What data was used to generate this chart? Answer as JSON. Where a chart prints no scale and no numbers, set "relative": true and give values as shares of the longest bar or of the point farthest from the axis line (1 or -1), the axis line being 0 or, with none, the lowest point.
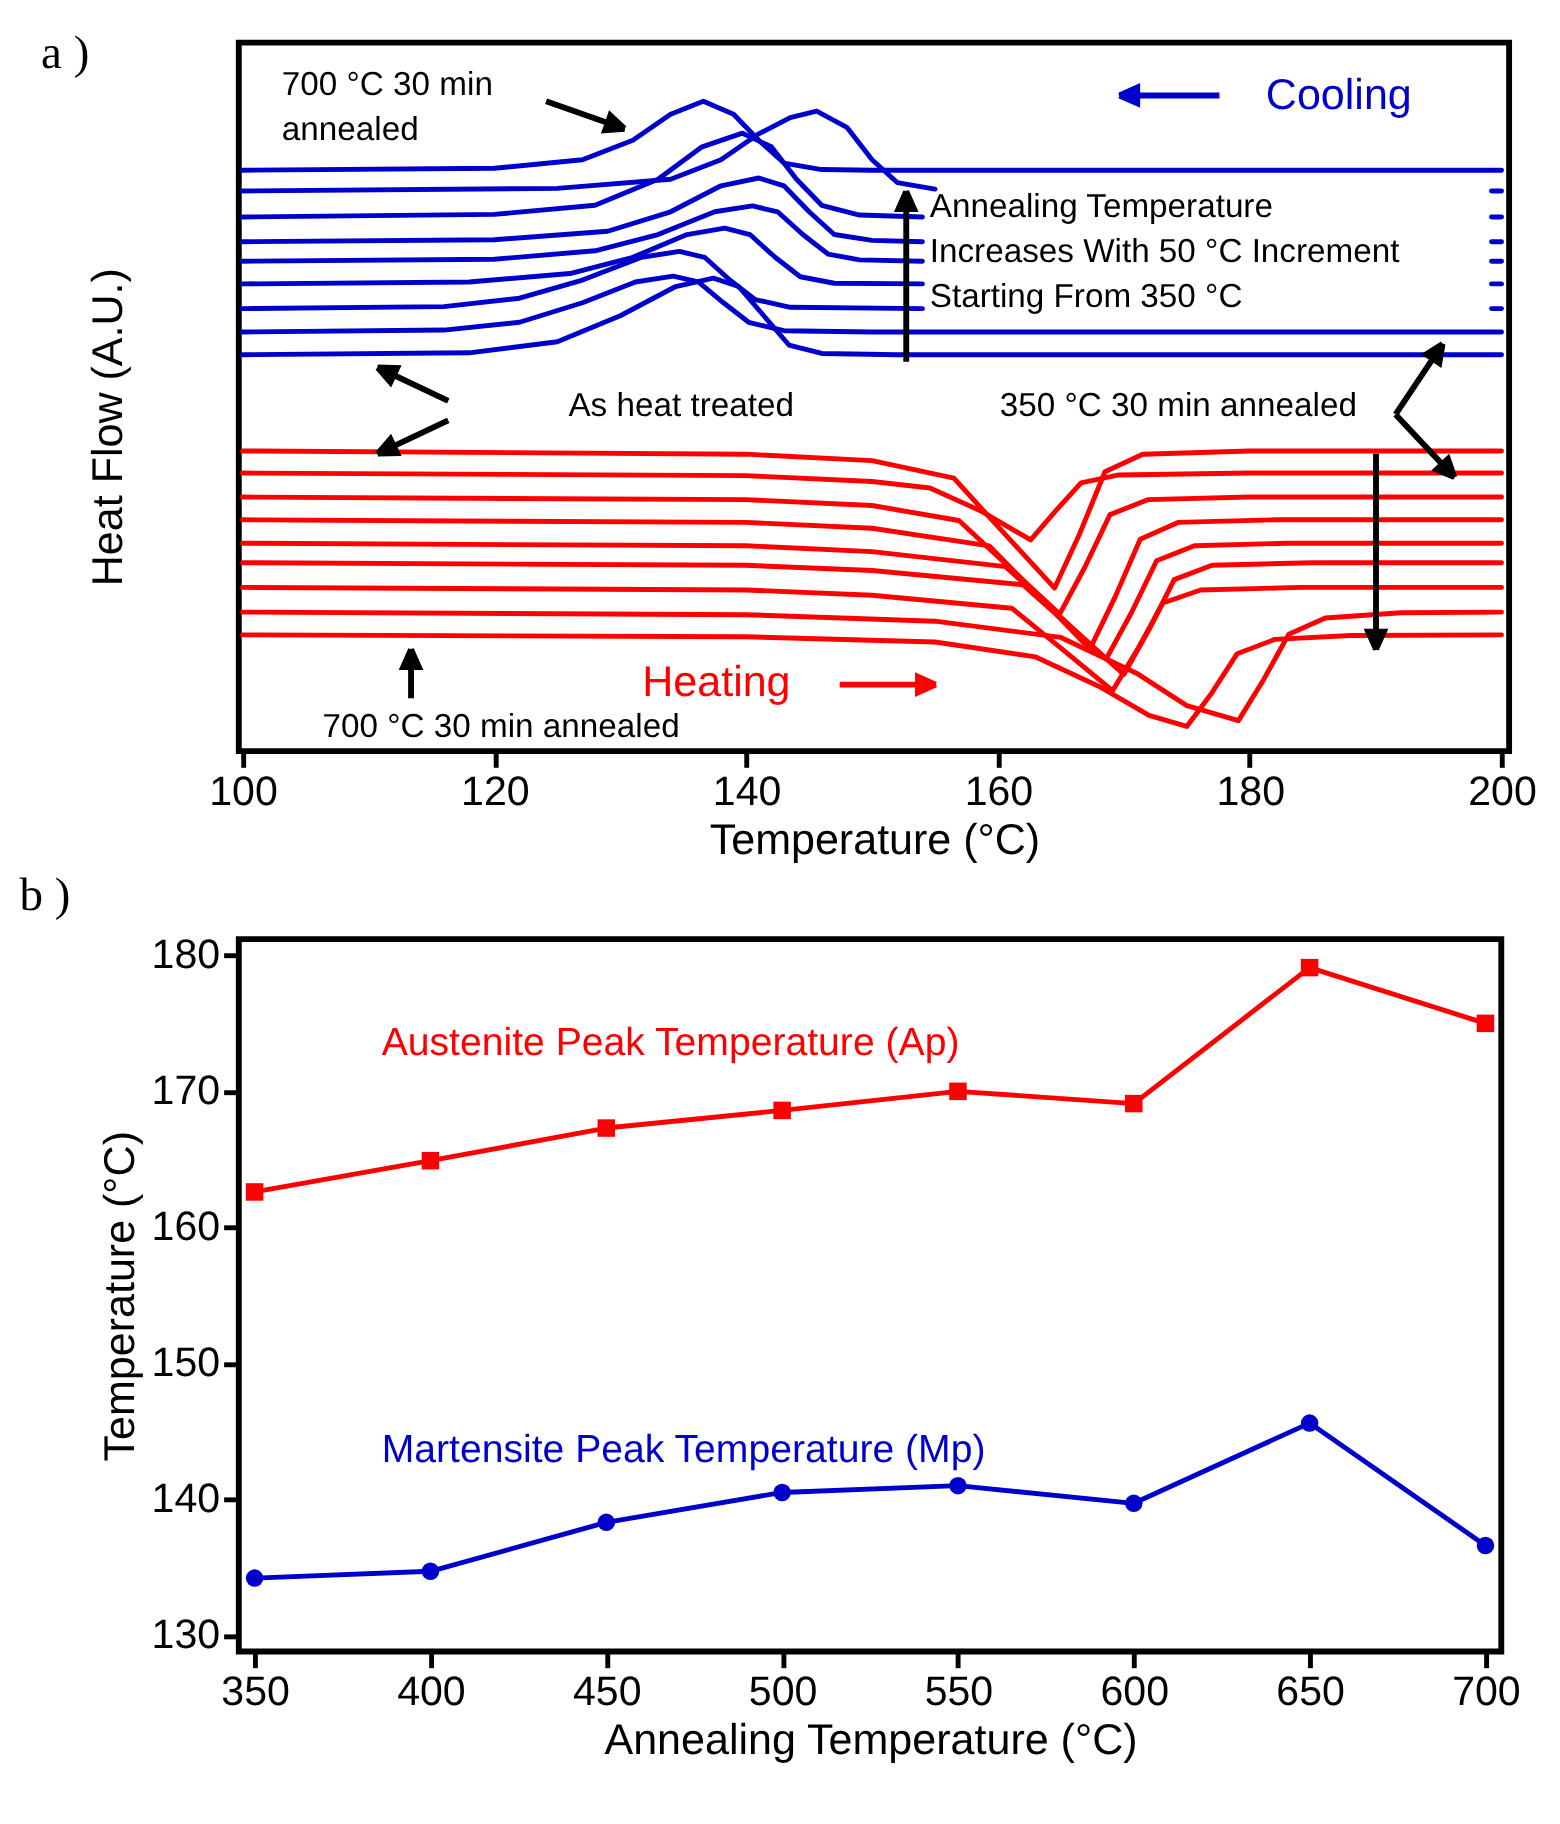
{
  "chart_data": [
    {
      "type": "line",
      "title": "a )",
      "xlabel": "Temperature (°C)",
      "ylabel": "Heat Flow (A.U.)",
      "relative": true,
      "xlim": [
        99.7,
        200.6
      ],
      "xticks": [
        100,
        120,
        140,
        160,
        180,
        200
      ],
      "annotations": [
        "700 °C 30 min\nannealed",
        "As heat treated",
        "350 °C 30 min annealed",
        "Annealing Temperature\nIncreases With 50 °C Increment\nStarting From 350 °C",
        "Cooling",
        "Heating",
        "700 °C 30 min annealed"
      ],
      "series": [
        {
          "color": "#0000cc",
          "x": [
            100,
            120,
            127,
            131,
            134,
            136.6,
            139,
            141,
            143,
            146,
            150,
            200
          ],
          "values": [
            0.894,
            0.897,
            0.91,
            0.94,
            0.98,
            1.0,
            0.98,
            0.94,
            0.905,
            0.895,
            0.894,
            0.894
          ]
        },
        {
          "color": "#0000cc",
          "x": [
            100,
            125,
            134,
            138,
            141,
            143.5,
            145.6,
            148,
            150,
            152,
            155,
            170,
            199.2,
            200
          ],
          "values": [
            0.862,
            0.866,
            0.88,
            0.91,
            0.95,
            0.975,
            0.985,
            0.96,
            0.91,
            0.875,
            0.865,
            null,
            0.862,
            0.862
          ]
        },
        {
          "color": "#0000cc",
          "x": [
            100,
            120,
            128,
            133,
            136.5,
            139.7,
            142,
            144,
            146,
            149,
            154,
            170,
            199.2,
            200
          ],
          "values": [
            0.822,
            0.826,
            0.84,
            0.88,
            0.93,
            0.951,
            0.93,
            0.88,
            0.84,
            0.825,
            0.822,
            null,
            0.822,
            0.822
          ]
        },
        {
          "color": "#0000cc",
          "x": [
            100,
            120,
            129,
            134,
            138,
            141,
            143,
            145,
            147,
            150,
            154,
            170,
            199.2,
            200
          ],
          "values": [
            0.784,
            0.787,
            0.8,
            0.83,
            0.87,
            0.882,
            0.87,
            0.83,
            0.795,
            0.786,
            0.784,
            null,
            0.784,
            0.784
          ]
        },
        {
          "color": "#0000cc",
          "x": [
            100,
            120,
            128,
            133,
            137.5,
            140.5,
            142.5,
            144.5,
            146.5,
            149,
            154,
            170,
            199.2,
            200
          ],
          "values": [
            0.754,
            0.757,
            0.77,
            0.795,
            0.83,
            0.839,
            0.83,
            0.795,
            0.765,
            0.756,
            0.754,
            null,
            0.754,
            0.754
          ]
        },
        {
          "color": "#0000cc",
          "x": [
            100,
            118,
            126,
            131,
            135.3,
            138.3,
            140.3,
            142.3,
            144.3,
            147,
            154,
            170,
            199.2,
            200
          ],
          "values": [
            0.719,
            0.722,
            0.735,
            0.76,
            0.795,
            0.805,
            0.795,
            0.76,
            0.73,
            0.72,
            0.719,
            null,
            0.719,
            0.719
          ]
        },
        {
          "color": "#0000cc",
          "x": [
            100,
            116,
            122,
            127,
            131.7,
            134.7,
            136.7,
            138.7,
            140.7,
            143.5,
            154,
            170,
            199.2,
            200
          ],
          "values": [
            0.681,
            0.684,
            0.697,
            0.725,
            0.76,
            0.769,
            0.76,
            0.725,
            0.695,
            0.683,
            0.681,
            null,
            0.681,
            0.681
          ]
        },
        {
          "color": "#0000cc",
          "x": [
            100,
            116,
            122,
            127,
            131.2,
            134.2,
            136.2,
            138.2,
            140.2,
            143,
            150,
            200
          ],
          "values": [
            0.645,
            0.648,
            0.66,
            0.69,
            0.722,
            0.731,
            0.722,
            0.69,
            0.66,
            0.647,
            0.645,
            0.645
          ]
        },
        {
          "color": "#0000cc",
          "x": [
            100,
            118,
            125,
            130,
            134.4,
            137.4,
            139.4,
            141.4,
            143.4,
            146,
            152,
            200
          ],
          "values": [
            0.61,
            0.613,
            0.63,
            0.67,
            0.715,
            0.728,
            0.715,
            0.67,
            0.625,
            0.612,
            0.61,
            0.61
          ]
        },
        {
          "color": "#ff0000",
          "x": [
            100,
            140,
            150,
            156.5,
            160.5,
            164.5,
            166.5,
            168.5,
            171.5,
            180,
            200
          ],
          "values": [
            0.462,
            0.457,
            0.447,
            0.42,
            0.335,
            0.251,
            0.335,
            0.43,
            0.457,
            0.462,
            0.462
          ]
        },
        {
          "color": "#ff0000",
          "x": [
            100,
            140,
            150,
            154.6,
            158.6,
            162.6,
            164.6,
            166.6,
            169.6,
            180,
            200
          ],
          "values": [
            0.428,
            0.424,
            0.415,
            0.405,
            0.37,
            0.325,
            0.37,
            0.413,
            0.425,
            0.428,
            0.428
          ]
        },
        {
          "color": "#ff0000",
          "x": [
            100,
            140,
            150,
            156.9,
            160.9,
            164.9,
            166.9,
            168.9,
            171.9,
            180,
            200
          ],
          "values": [
            0.391,
            0.387,
            0.378,
            0.355,
            0.283,
            0.211,
            0.283,
            0.364,
            0.387,
            0.391,
            0.391
          ]
        },
        {
          "color": "#ff0000",
          "x": [
            100,
            140,
            150,
            159.3,
            163.3,
            167.3,
            169.3,
            171.3,
            174.3,
            182,
            200
          ],
          "values": [
            0.356,
            0.352,
            0.343,
            0.316,
            0.237,
            0.157,
            0.237,
            0.326,
            0.352,
            0.356,
            0.356
          ]
        },
        {
          "color": "#ff0000",
          "x": [
            100,
            140,
            150,
            160.6,
            164.6,
            168.6,
            170.6,
            172.6,
            175.6,
            183,
            200
          ],
          "values": [
            0.32,
            0.316,
            0.307,
            0.284,
            0.213,
            0.142,
            0.213,
            0.293,
            0.316,
            0.32,
            0.32
          ]
        },
        {
          "color": "#ff0000",
          "x": [
            100,
            140,
            150,
            162,
            166,
            170,
            172,
            174,
            177,
            185,
            200
          ],
          "values": [
            0.29,
            0.286,
            0.278,
            0.256,
            0.187,
            0.118,
            0.187,
            0.264,
            0.286,
            0.29,
            0.29
          ]
        },
        {
          "color": "#ff0000",
          "x": [
            100,
            140,
            150,
            161.1,
            165.1,
            169.1,
            171.1,
            173.1,
            176.1,
            184,
            200
          ],
          "values": [
            0.252,
            0.248,
            0.24,
            0.22,
            0.157,
            0.093,
            0.157,
            0.228,
            0.248,
            0.252,
            0.252
          ]
        },
        {
          "color": "#ff0000",
          "x": [
            100,
            140,
            155,
            165,
            171,
            175,
            179.1,
            181.1,
            183.1,
            186,
            192,
            200
          ],
          "values": [
            0.214,
            0.21,
            0.2,
            0.175,
            0.12,
            0.07,
            0.047,
            0.11,
            0.18,
            0.205,
            0.213,
            0.214
          ]
        },
        {
          "color": "#ff0000",
          "x": [
            100,
            140,
            155,
            163,
            168,
            172,
            175,
            177,
            179,
            182,
            188,
            200
          ],
          "values": [
            0.179,
            0.176,
            0.168,
            0.145,
            0.1,
            0.055,
            0.038,
            0.09,
            0.15,
            0.172,
            0.178,
            0.179
          ]
        }
      ]
    },
    {
      "type": "line",
      "title": "b )",
      "xlabel": "Annealing Temperature (°C)",
      "ylabel": "Temperature (°C)",
      "x": [
        350,
        400,
        450,
        500,
        550,
        600,
        650,
        700
      ],
      "xlim": [
        345.5,
        704.5
      ],
      "xticks": [
        350,
        400,
        450,
        500,
        550,
        600,
        650,
        700
      ],
      "ylim": [
        128.8,
        181.2
      ],
      "yticks": [
        130,
        140,
        150,
        160,
        170,
        180
      ],
      "series": [
        {
          "name": "Austenite Peak Temperature (Ap)",
          "color": "#ff0000",
          "marker": "square",
          "values": [
            162.6,
            164.9,
            167.3,
            168.6,
            170,
            169.1,
            179.1,
            175
          ]
        },
        {
          "name": "Martensite Peak Temperature (Mp)",
          "color": "#0000cc",
          "marker": "circle",
          "values": [
            134.2,
            134.7,
            138.3,
            140.5,
            141,
            139.7,
            145.6,
            136.6
          ]
        }
      ]
    }
  ]
}
